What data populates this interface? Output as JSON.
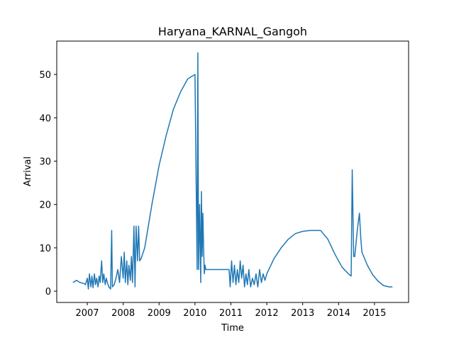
{
  "chart_data": {
    "type": "line",
    "title": "Haryana_KARNAL_Gangoh",
    "xlabel": "Time",
    "ylabel": "Arrival",
    "color": "#1f77b4",
    "x": [
      2006.6,
      2006.7,
      2006.8,
      2006.9,
      2006.95,
      2007.0,
      2007.03,
      2007.06,
      2007.1,
      2007.13,
      2007.16,
      2007.2,
      2007.23,
      2007.26,
      2007.3,
      2007.33,
      2007.36,
      2007.4,
      2007.43,
      2007.46,
      2007.5,
      2007.53,
      2007.56,
      2007.6,
      2007.65,
      2007.68,
      2007.7,
      2007.75,
      2007.8,
      2007.85,
      2007.9,
      2007.95,
      2008.0,
      2008.03,
      2008.06,
      2008.1,
      2008.13,
      2008.16,
      2008.2,
      2008.23,
      2008.26,
      2008.3,
      2008.33,
      2008.36,
      2008.4,
      2008.43,
      2008.46,
      2008.5,
      2008.6,
      2008.8,
      2009.0,
      2009.2,
      2009.4,
      2009.6,
      2009.8,
      2010.0,
      2010.06,
      2010.08,
      2010.1,
      2010.13,
      2010.16,
      2010.18,
      2010.2,
      2010.22,
      2010.24,
      2010.26,
      2010.28,
      2010.3,
      2010.35,
      2010.6,
      2010.95,
      2010.98,
      2011.02,
      2011.06,
      2011.1,
      2011.14,
      2011.18,
      2011.22,
      2011.26,
      2011.3,
      2011.34,
      2011.38,
      2011.42,
      2011.46,
      2011.5,
      2011.55,
      2011.6,
      2011.65,
      2011.7,
      2011.75,
      2011.8,
      2011.85,
      2011.9,
      2011.95,
      2012.0,
      2012.2,
      2012.4,
      2012.6,
      2012.8,
      2013.0,
      2013.2,
      2013.5,
      2013.7,
      2013.9,
      2014.1,
      2014.3,
      2014.35,
      2014.38,
      2014.42,
      2014.45,
      2014.52,
      2014.58,
      2014.62,
      2014.65,
      2014.8,
      2014.95,
      2015.1,
      2015.25,
      2015.4,
      2015.5
    ],
    "y": [
      2,
      2.5,
      2,
      1.8,
      1.5,
      3,
      0.5,
      4,
      1,
      3.5,
      0.8,
      4,
      1.5,
      3,
      1,
      3.5,
      2,
      7,
      2,
      4,
      1.5,
      3,
      2,
      1,
      0.5,
      14,
      1,
      1.5,
      3,
      5,
      2,
      8,
      3,
      9,
      2,
      7,
      1.5,
      6,
      2.5,
      8,
      2,
      15,
      1,
      15,
      7,
      15,
      7,
      7.5,
      10,
      20,
      29,
      36,
      42,
      46,
      49,
      50,
      5,
      55,
      5,
      20,
      2,
      23,
      8,
      18,
      10,
      4,
      6,
      5,
      5,
      5,
      5,
      1,
      7,
      2,
      6,
      1.5,
      5,
      2,
      7,
      3,
      6,
      1,
      4,
      1.5,
      5,
      1,
      3,
      1.5,
      4,
      1,
      5,
      2,
      4,
      2.5,
      4,
      7.5,
      10,
      12,
      13.3,
      13.8,
      14,
      14,
      12,
      8.5,
      5.5,
      3.8,
      3.5,
      28,
      8,
      8,
      14,
      18,
      12,
      9,
      6,
      3.8,
      2.3,
      1.3,
      1,
      1
    ],
    "xlim": [
      2006.15,
      2015.95
    ],
    "ylim": [
      -2.6,
      57.7
    ],
    "xticks": [
      2007,
      2008,
      2009,
      2010,
      2011,
      2012,
      2013,
      2014,
      2015
    ],
    "yticks": [
      0,
      10,
      20,
      30,
      40,
      50
    ]
  }
}
